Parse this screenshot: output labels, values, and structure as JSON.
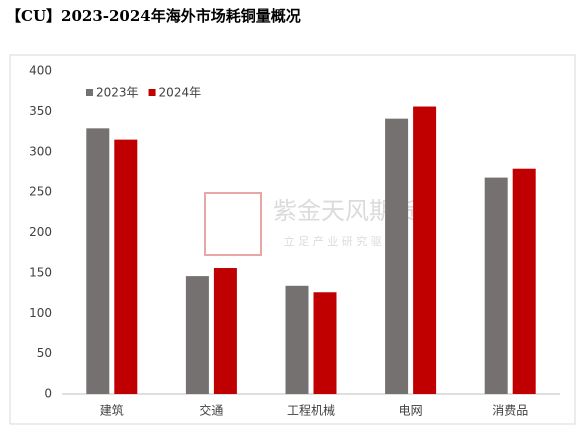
{
  "chart_data": {
    "type": "bar",
    "title": "【CU】2023-2024年海外市场耗铜量概况",
    "categories": [
      "建筑",
      "交通",
      "工程机械",
      "电网",
      "消费品"
    ],
    "series": [
      {
        "name": "2023年",
        "color": "#767171",
        "values": [
          329,
          146,
          134,
          341,
          268
        ]
      },
      {
        "name": "2024年",
        "color": "#c00000",
        "values": [
          315,
          156,
          126,
          356,
          279
        ]
      }
    ],
    "ylim": [
      0,
      400
    ],
    "yticks": [
      0,
      50,
      100,
      150,
      200,
      250,
      300,
      350,
      400
    ],
    "grid": false,
    "legend": "top-left"
  },
  "watermark": {
    "name": "紫金天风期货",
    "slogan": "立 足 产 业   研 究 驱 动"
  }
}
